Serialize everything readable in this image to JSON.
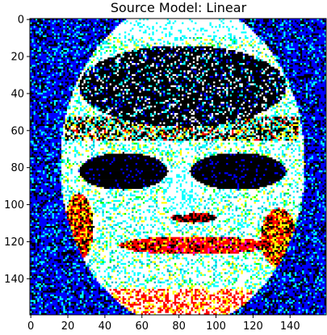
{
  "chart_data": {
    "type": "heatmap",
    "title": "Source Model: Linear",
    "xlabel": "",
    "ylabel": "",
    "xlim": [
      -0.5,
      159.5
    ],
    "ylim": [
      159.5,
      -0.5
    ],
    "xticks": [
      0,
      20,
      40,
      60,
      80,
      100,
      120,
      140
    ],
    "yticks": [
      0,
      20,
      40,
      60,
      80,
      100,
      120,
      140
    ],
    "grid": false,
    "legend": "none",
    "palette": {
      "black": "#000000",
      "white": "#ffffff",
      "blue": "#0000ff",
      "cyan": "#00ffff",
      "red": "#ff0000",
      "yellow": "#ffff00",
      "green": "#00ff00",
      "magenta": "#ff00ff",
      "teal": "#00b4c8",
      "navy": "#000080"
    }
  }
}
